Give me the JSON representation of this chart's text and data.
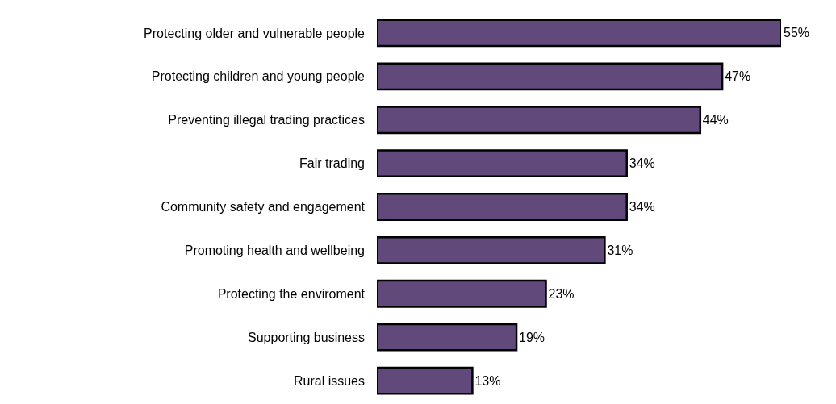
{
  "chart_data": {
    "type": "bar",
    "orientation": "horizontal",
    "categories": [
      "Protecting older and vulnerable people",
      "Protecting children and young people",
      "Preventing illegal trading practices",
      "Fair trading",
      "Community safety and engagement",
      "Promoting health and wellbeing",
      "Protecting the enviroment",
      "Supporting business",
      "Rural issues"
    ],
    "values": [
      55,
      47,
      44,
      34,
      34,
      31,
      23,
      19,
      13
    ],
    "value_labels": [
      "55%",
      "47%",
      "44%",
      "34%",
      "34%",
      "31%",
      "23%",
      "19%",
      "13%"
    ],
    "color": "#614a7b"
  }
}
